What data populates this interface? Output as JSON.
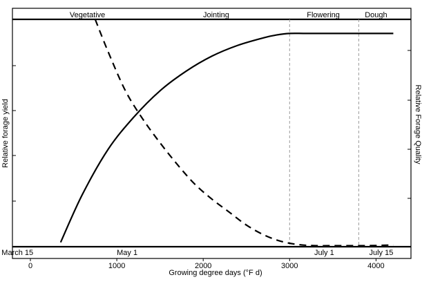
{
  "chart_data": {
    "type": "line",
    "xlabel": "Growing degree days (°F d)",
    "ylabel_left": "Relative forage yield",
    "ylabel_right": "Relative Forage Quality",
    "xlim": [
      -200,
      4400
    ],
    "ylim": [
      0,
      1.05
    ],
    "x_ticks": [
      0,
      1000,
      2000,
      3000,
      4000
    ],
    "growth_stages": [
      {
        "name": "Vegetative",
        "center": 660
      },
      {
        "name": "Jointing",
        "center": 2150
      },
      {
        "name": "Flowering",
        "center": 3390
      },
      {
        "name": "Dough",
        "center": 4000
      }
    ],
    "stage_boundaries": [
      3000,
      3800
    ],
    "dates": [
      {
        "label": "March 15",
        "x": -150
      },
      {
        "label": "May 1",
        "x": 1120
      },
      {
        "label": "July 1",
        "x": 3400
      },
      {
        "label": "July 15",
        "x": 4060
      }
    ],
    "series": [
      {
        "name": "Relative forage yield",
        "style": "solid",
        "x": [
          350,
          600,
          900,
          1200,
          1500,
          1800,
          2100,
          2400,
          2700,
          2850,
          3000,
          3200,
          3600,
          4000,
          4200
        ],
        "y": [
          0.02,
          0.24,
          0.45,
          0.6,
          0.72,
          0.81,
          0.88,
          0.93,
          0.965,
          0.978,
          0.985,
          0.985,
          0.985,
          0.985,
          0.985
        ]
      },
      {
        "name": "Relative forage quality",
        "style": "dashed",
        "x": [
          750,
          900,
          1100,
          1300,
          1500,
          1700,
          1900,
          2100,
          2300,
          2500,
          2700,
          2900,
          3100,
          3300,
          3600,
          3900,
          4200
        ],
        "y": [
          1.05,
          0.9,
          0.72,
          0.59,
          0.48,
          0.38,
          0.29,
          0.22,
          0.16,
          0.1,
          0.055,
          0.025,
          0.01,
          0.005,
          0.005,
          0.005,
          0.008
        ]
      }
    ]
  }
}
